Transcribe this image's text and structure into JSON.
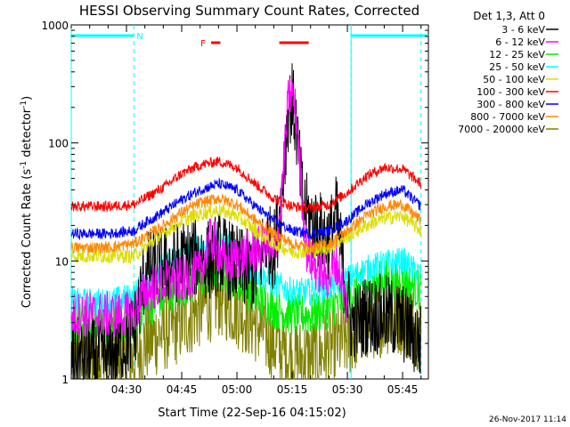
{
  "chart_data": {
    "type": "line",
    "title": "HESSI Observing Summary Count Rates, Corrected",
    "xlabel": "Start Time (22-Sep-16 04:15:02)",
    "ylabel": "Corrected Count Rate (s",
    "ylabel_sup1": "-1",
    "ylabel_mid": " detector",
    "ylabel_sup2": "-1",
    "ylabel_end": ")",
    "yscale": "log",
    "ylim": [
      1,
      1000
    ],
    "xlim_minutes": [
      0,
      97
    ],
    "x_tick_labels": [
      "04:30",
      "04:45",
      "05:00",
      "05:15",
      "05:30",
      "05:45"
    ],
    "x_tick_minutes": [
      15,
      30,
      45,
      60,
      75,
      90
    ],
    "y_tick_labels": [
      "1",
      "10",
      "100",
      "1000"
    ],
    "y_tick_values": [
      1,
      10,
      100,
      1000
    ],
    "legend": {
      "placement": "right",
      "header": "Det 1,3, Att 0",
      "entries": [
        {
          "label": "3 - 6 keV",
          "color": "#000000"
        },
        {
          "label": "6 - 12 keV",
          "color": "#ff00ff"
        },
        {
          "label": "12 - 25 keV",
          "color": "#00ee00"
        },
        {
          "label": "25 - 50 keV",
          "color": "#00ffff"
        },
        {
          "label": "50 - 100 keV",
          "color": "#dddd00"
        },
        {
          "label": "100 - 300 keV",
          "color": "#ff0000"
        },
        {
          "label": "300 - 800 keV",
          "color": "#0000ff"
        },
        {
          "label": "800 - 7000 keV",
          "color": "#ff8800"
        },
        {
          "label": "7000 - 20000 keV",
          "color": "#808000"
        }
      ]
    },
    "annotations": {
      "night_label": "N",
      "flare_label": "F",
      "night_segments_minutes": [
        [
          0,
          17
        ],
        [
          76,
          97
        ]
      ],
      "flare_segments_minutes": [
        [
          38,
          40.5
        ],
        [
          56.5,
          64.5
        ]
      ],
      "night_boundary_minutes": [
        17,
        76,
        95
      ],
      "saa_line_minutes": [
        0,
        76
      ]
    },
    "series": [
      {
        "name": "3 - 6 keV",
        "color": "#000000",
        "x": [
          0,
          10,
          17,
          20,
          25,
          30,
          35,
          38,
          40,
          45,
          50,
          53,
          55,
          57,
          58,
          59,
          60,
          61,
          62,
          63,
          64,
          66,
          70,
          72,
          74,
          76,
          78,
          80,
          85,
          90,
          95
        ],
        "y": [
          1.5,
          1.5,
          2.5,
          8,
          9,
          10,
          11,
          10,
          12,
          9,
          8,
          15,
          12,
          30,
          80,
          200,
          220,
          150,
          60,
          30,
          25,
          20,
          15,
          25,
          8,
          3,
          3,
          3.5,
          3.5,
          3,
          2
        ]
      },
      {
        "name": "6 - 12 keV",
        "color": "#ff00ff",
        "x": [
          0,
          17,
          20,
          25,
          30,
          35,
          38,
          40,
          42,
          45,
          50,
          53,
          55,
          57,
          58,
          59,
          60,
          61,
          62,
          63,
          64,
          66,
          70,
          72,
          75
        ],
        "y": [
          3.5,
          3.5,
          5.5,
          6.5,
          7,
          8,
          16,
          12,
          9,
          11,
          12,
          14,
          10,
          30,
          90,
          240,
          260,
          180,
          70,
          25,
          12,
          9,
          7,
          10,
          4
        ]
      },
      {
        "name": "12 - 25 keV",
        "color": "#00ee00",
        "x": [
          0,
          17,
          20,
          25,
          30,
          35,
          40,
          45,
          50,
          55,
          60,
          65,
          70,
          75,
          80,
          85,
          90,
          95
        ],
        "y": [
          3,
          3,
          4,
          5,
          6,
          7,
          8.5,
          7,
          5,
          4,
          3.5,
          3.5,
          4,
          5,
          6,
          7,
          7,
          5.5
        ]
      },
      {
        "name": "25 - 50 keV",
        "color": "#00ffff",
        "x": [
          0,
          10,
          17,
          20,
          25,
          30,
          35,
          40,
          45,
          50,
          55,
          60,
          65,
          70,
          75,
          80,
          85,
          90,
          95
        ],
        "y": [
          4.5,
          4.5,
          5,
          7,
          9,
          11,
          13,
          14,
          12,
          8,
          6.5,
          5.5,
          5.5,
          6,
          7,
          8.5,
          9.5,
          10,
          7.5
        ]
      },
      {
        "name": "50 - 100 keV",
        "color": "#dddd00",
        "x": [
          0,
          10,
          17,
          20,
          25,
          30,
          35,
          40,
          45,
          50,
          55,
          60,
          65,
          70,
          75,
          80,
          85,
          90,
          95
        ],
        "y": [
          11,
          11,
          11,
          13,
          17,
          22,
          25,
          27,
          24,
          18,
          14,
          12,
          12,
          13,
          16,
          20,
          23,
          24,
          18
        ]
      },
      {
        "name": "100 - 300 keV",
        "color": "#ff0000",
        "x": [
          0,
          10,
          17,
          20,
          25,
          30,
          35,
          40,
          45,
          50,
          55,
          60,
          65,
          70,
          75,
          80,
          85,
          90,
          95
        ],
        "y": [
          29,
          29,
          30,
          34,
          42,
          55,
          65,
          70,
          62,
          45,
          34,
          29,
          28,
          30,
          38,
          52,
          62,
          60,
          45
        ]
      },
      {
        "name": "300 - 800 keV",
        "color": "#0000ff",
        "x": [
          0,
          10,
          17,
          20,
          25,
          30,
          35,
          40,
          45,
          50,
          55,
          60,
          65,
          70,
          75,
          80,
          85,
          90,
          95
        ],
        "y": [
          17,
          17,
          18,
          21,
          26,
          33,
          40,
          45,
          40,
          29,
          22,
          18,
          17,
          18,
          22,
          30,
          37,
          40,
          29
        ]
      },
      {
        "name": "800 - 7000 keV",
        "color": "#ff8800",
        "x": [
          0,
          10,
          17,
          20,
          25,
          30,
          35,
          40,
          45,
          50,
          55,
          60,
          65,
          70,
          75,
          80,
          85,
          90,
          95
        ],
        "y": [
          13,
          13,
          14,
          16,
          20,
          26,
          31,
          34,
          30,
          22,
          17,
          14,
          13,
          14,
          18,
          24,
          29,
          30,
          22
        ]
      },
      {
        "name": "7000 - 20000 keV",
        "color": "#808000",
        "x": [
          0,
          17,
          20,
          25,
          30,
          35,
          40,
          45,
          50,
          55,
          60,
          65,
          70,
          75,
          80,
          85,
          90,
          95
        ],
        "y": [
          1.5,
          1.5,
          2,
          2.5,
          3,
          4,
          5,
          4,
          3,
          2,
          1.5,
          1.5,
          1.8,
          2.2,
          3,
          3.5,
          3.5,
          2.5
        ]
      }
    ]
  },
  "footer": {
    "timestamp": "26-Nov-2017 11:14"
  }
}
